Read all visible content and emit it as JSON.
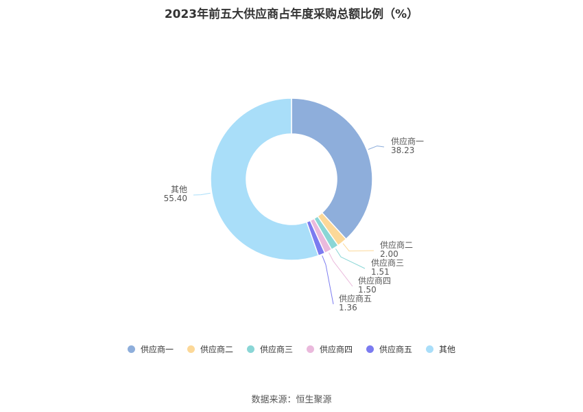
{
  "chart_data": {
    "type": "pie",
    "title": "2023年前五大供应商占年度采购总额比例（%）",
    "categories": [
      "供应商一",
      "供应商二",
      "供应商三",
      "供应商四",
      "供应商五",
      "其他"
    ],
    "values": [
      38.23,
      2.0,
      1.51,
      1.5,
      1.36,
      55.4
    ],
    "value_labels": [
      "38.23",
      "2.00",
      "1.51",
      "1.50",
      "1.36",
      "55.40"
    ],
    "colors": [
      "#8eaedb",
      "#fcd898",
      "#8ad6d6",
      "#eab9dc",
      "#7b7bf0",
      "#a9def9"
    ],
    "donut": true,
    "legend_position": "bottom"
  },
  "footer": {
    "source": "数据来源：恒生聚源"
  }
}
